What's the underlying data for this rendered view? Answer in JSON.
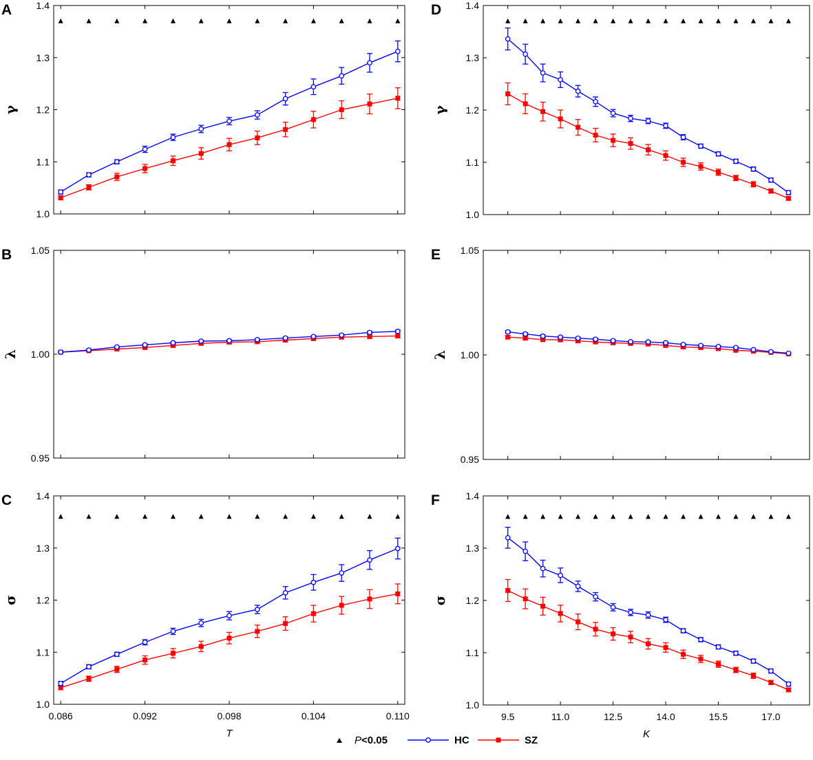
{
  "legend": {
    "sig_p": "P",
    "sig_rest": "<0.05",
    "hc": "HC",
    "sz": "SZ"
  },
  "colors": {
    "hc": "#0000ff",
    "sz": "#ff0000",
    "sig": "#000000"
  },
  "chart_data": [
    {
      "id": "A",
      "panel_label": "A",
      "type": "line",
      "ylabel": "γ",
      "xlabel": "",
      "ylim": [
        1.0,
        1.4
      ],
      "yticks": [
        1.0,
        1.1,
        1.2,
        1.3,
        1.4
      ],
      "ytick_labels": [
        "1.0",
        "1.1",
        "1.2",
        "1.3",
        "1.4"
      ],
      "xlim": [
        0.0855,
        0.1105
      ],
      "xticks": [
        0.086,
        0.092,
        0.098,
        0.104,
        0.11
      ],
      "xtick_labels": [],
      "x": [
        0.086,
        0.088,
        0.09,
        0.092,
        0.094,
        0.096,
        0.098,
        0.1,
        0.102,
        0.104,
        0.106,
        0.108,
        0.11
      ],
      "series": [
        {
          "name": "HC",
          "values": [
            1.042,
            1.075,
            1.1,
            1.124,
            1.147,
            1.163,
            1.178,
            1.19,
            1.221,
            1.244,
            1.265,
            1.29,
            1.312
          ],
          "errors": [
            0.004,
            0.004,
            0.004,
            0.006,
            0.006,
            0.007,
            0.007,
            0.008,
            0.012,
            0.015,
            0.016,
            0.018,
            0.02
          ]
        },
        {
          "name": "SZ",
          "values": [
            1.031,
            1.051,
            1.071,
            1.087,
            1.102,
            1.116,
            1.133,
            1.146,
            1.162,
            1.181,
            1.2,
            1.211,
            1.222
          ],
          "errors": [
            0.004,
            0.005,
            0.007,
            0.008,
            0.009,
            0.011,
            0.012,
            0.013,
            0.014,
            0.016,
            0.017,
            0.019,
            0.02
          ]
        }
      ],
      "significance_y": 1.37,
      "significance_x": [
        0.086,
        0.088,
        0.09,
        0.092,
        0.094,
        0.096,
        0.098,
        0.1,
        0.102,
        0.104,
        0.106,
        0.108,
        0.11
      ]
    },
    {
      "id": "B",
      "panel_label": "B",
      "type": "line",
      "ylabel": "λ",
      "xlabel": "",
      "ylim": [
        0.95,
        1.05
      ],
      "yticks": [
        0.95,
        1.0,
        1.05
      ],
      "ytick_labels": [
        "0.95",
        "1.00",
        "1.05"
      ],
      "xlim": [
        0.0855,
        0.1105
      ],
      "xticks": [
        0.086,
        0.092,
        0.098,
        0.104,
        0.11
      ],
      "xtick_labels": [],
      "x": [
        0.086,
        0.088,
        0.09,
        0.092,
        0.094,
        0.096,
        0.098,
        0.1,
        0.102,
        0.104,
        0.106,
        0.108,
        0.11
      ],
      "series": [
        {
          "name": "HC",
          "values": [
            1.001,
            1.002,
            1.0035,
            1.0045,
            1.0055,
            1.0063,
            1.0065,
            1.007,
            1.0078,
            1.0085,
            1.0092,
            1.0105,
            1.011
          ],
          "errors": [
            0.0003,
            0.0003,
            0.0004,
            0.0004,
            0.0004,
            0.0004,
            0.0004,
            0.0004,
            0.0005,
            0.0005,
            0.0005,
            0.0006,
            0.0006
          ]
        },
        {
          "name": "SZ",
          "values": [
            1.001,
            1.0017,
            1.0025,
            1.0032,
            1.0042,
            1.0052,
            1.0058,
            1.006,
            1.0068,
            1.0075,
            1.0082,
            1.0085,
            1.0088
          ],
          "errors": [
            0.0003,
            0.0004,
            0.0005,
            0.0005,
            0.0006,
            0.0006,
            0.0006,
            0.0006,
            0.0007,
            0.0007,
            0.0008,
            0.0008,
            0.0008
          ]
        }
      ],
      "significance_y": null,
      "significance_x": []
    },
    {
      "id": "C",
      "panel_label": "C",
      "type": "line",
      "ylabel": "σ",
      "xlabel": "T",
      "ylim": [
        1.0,
        1.4
      ],
      "yticks": [
        1.0,
        1.1,
        1.2,
        1.3,
        1.4
      ],
      "ytick_labels": [
        "1.0",
        "1.1",
        "1.2",
        "1.3",
        "1.4"
      ],
      "xlim": [
        0.0855,
        0.1105
      ],
      "xticks": [
        0.086,
        0.092,
        0.098,
        0.104,
        0.11
      ],
      "xtick_labels": [
        "0.086",
        "0.092",
        "0.098",
        "0.104",
        "0.110"
      ],
      "x": [
        0.086,
        0.088,
        0.09,
        0.092,
        0.094,
        0.096,
        0.098,
        0.1,
        0.102,
        0.104,
        0.106,
        0.108,
        0.11
      ],
      "series": [
        {
          "name": "HC",
          "values": [
            1.04,
            1.072,
            1.096,
            1.119,
            1.14,
            1.156,
            1.17,
            1.182,
            1.214,
            1.234,
            1.252,
            1.277,
            1.299
          ],
          "errors": [
            0.004,
            0.004,
            0.004,
            0.005,
            0.006,
            0.007,
            0.008,
            0.008,
            0.012,
            0.015,
            0.016,
            0.018,
            0.02
          ]
        },
        {
          "name": "SZ",
          "values": [
            1.032,
            1.049,
            1.067,
            1.085,
            1.098,
            1.111,
            1.127,
            1.14,
            1.155,
            1.174,
            1.19,
            1.202,
            1.212
          ],
          "errors": [
            0.004,
            0.005,
            0.006,
            0.008,
            0.009,
            0.01,
            0.011,
            0.012,
            0.013,
            0.016,
            0.017,
            0.018,
            0.019
          ]
        }
      ],
      "significance_y": 1.36,
      "significance_x": [
        0.086,
        0.088,
        0.09,
        0.092,
        0.094,
        0.096,
        0.098,
        0.1,
        0.102,
        0.104,
        0.106,
        0.108,
        0.11
      ]
    },
    {
      "id": "D",
      "panel_label": "D",
      "type": "line",
      "ylabel": "γ",
      "xlabel": "",
      "ylim": [
        1.0,
        1.4
      ],
      "yticks": [
        1.0,
        1.1,
        1.2,
        1.3,
        1.4
      ],
      "ytick_labels": [
        "1.0",
        "1.1",
        "1.2",
        "1.3",
        "1.4"
      ],
      "xlim": [
        8.8,
        18.1
      ],
      "xticks": [
        9.5,
        11.0,
        12.5,
        14.0,
        15.5,
        17.0
      ],
      "xtick_labels": [],
      "x": [
        9.5,
        10.0,
        10.5,
        11.0,
        11.5,
        12.0,
        12.5,
        13.0,
        13.5,
        14.0,
        14.5,
        15.0,
        15.5,
        16.0,
        16.5,
        17.0,
        17.5
      ],
      "series": [
        {
          "name": "HC",
          "values": [
            1.336,
            1.307,
            1.271,
            1.258,
            1.236,
            1.216,
            1.194,
            1.184,
            1.179,
            1.17,
            1.148,
            1.131,
            1.116,
            1.102,
            1.087,
            1.066,
            1.042
          ],
          "errors": [
            0.021,
            0.019,
            0.017,
            0.015,
            0.011,
            0.009,
            0.007,
            0.006,
            0.005,
            0.005,
            0.005,
            0.004,
            0.004,
            0.004,
            0.004,
            0.004,
            0.004
          ]
        },
        {
          "name": "SZ",
          "values": [
            1.231,
            1.212,
            1.197,
            1.183,
            1.167,
            1.152,
            1.142,
            1.136,
            1.124,
            1.113,
            1.1,
            1.092,
            1.081,
            1.07,
            1.058,
            1.045,
            1.031
          ],
          "errors": [
            0.021,
            0.019,
            0.018,
            0.017,
            0.015,
            0.013,
            0.012,
            0.011,
            0.01,
            0.009,
            0.008,
            0.007,
            0.006,
            0.005,
            0.005,
            0.004,
            0.003
          ]
        }
      ],
      "significance_y": 1.37,
      "significance_x": [
        9.5,
        10.0,
        10.5,
        11.0,
        11.5,
        12.0,
        12.5,
        13.0,
        13.5,
        14.0,
        14.5,
        15.0,
        15.5,
        16.0,
        16.5,
        17.0,
        17.5
      ]
    },
    {
      "id": "E",
      "panel_label": "E",
      "type": "line",
      "ylabel": "λ",
      "xlabel": "",
      "ylim": [
        0.95,
        1.05
      ],
      "yticks": [
        0.95,
        1.0,
        1.05
      ],
      "ytick_labels": [
        "0.95",
        "1.00",
        "1.05"
      ],
      "xlim": [
        8.8,
        18.1
      ],
      "xticks": [
        9.5,
        11.0,
        12.5,
        14.0,
        15.5,
        17.0
      ],
      "xtick_labels": [],
      "x": [
        9.5,
        10.0,
        10.5,
        11.0,
        11.5,
        12.0,
        12.5,
        13.0,
        13.5,
        14.0,
        14.5,
        15.0,
        15.5,
        16.0,
        16.5,
        17.0,
        17.5
      ],
      "series": [
        {
          "name": "HC",
          "values": [
            1.011,
            1.01,
            1.009,
            1.0085,
            1.008,
            1.0075,
            1.0068,
            1.0063,
            1.0062,
            1.0058,
            1.005,
            1.0045,
            1.004,
            1.0035,
            1.0025,
            1.0015,
            1.0008
          ],
          "errors": [
            0.0006,
            0.0006,
            0.0006,
            0.0005,
            0.0005,
            0.0005,
            0.0005,
            0.0004,
            0.0004,
            0.0004,
            0.0004,
            0.0004,
            0.0004,
            0.0003,
            0.0003,
            0.0003,
            0.0003
          ]
        },
        {
          "name": "SZ",
          "values": [
            1.0085,
            1.008,
            1.0073,
            1.0072,
            1.0067,
            1.0062,
            1.0058,
            1.0055,
            1.0052,
            1.0045,
            1.0038,
            1.0035,
            1.003,
            1.0022,
            1.0018,
            1.0012,
            1.0005
          ],
          "errors": [
            0.0008,
            0.0007,
            0.0007,
            0.0007,
            0.0007,
            0.0006,
            0.0006,
            0.0006,
            0.0006,
            0.0005,
            0.0005,
            0.0005,
            0.0004,
            0.0004,
            0.0004,
            0.0003,
            0.0003
          ]
        }
      ],
      "significance_y": null,
      "significance_x": []
    },
    {
      "id": "F",
      "panel_label": "F",
      "type": "line",
      "ylabel": "σ",
      "xlabel": "K",
      "ylim": [
        1.0,
        1.4
      ],
      "yticks": [
        1.0,
        1.1,
        1.2,
        1.3,
        1.4
      ],
      "ytick_labels": [
        "1.0",
        "1.1",
        "1.2",
        "1.3",
        "1.4"
      ],
      "xlim": [
        8.8,
        18.1
      ],
      "xticks": [
        9.5,
        11.0,
        12.5,
        14.0,
        15.5,
        17.0
      ],
      "xtick_labels": [
        "9.5",
        "11.0",
        "12.5",
        "14.0",
        "15.5",
        "17.0"
      ],
      "x": [
        9.5,
        10.0,
        10.5,
        11.0,
        11.5,
        12.0,
        12.5,
        13.0,
        13.5,
        14.0,
        14.5,
        15.0,
        15.5,
        16.0,
        16.5,
        17.0,
        17.5
      ],
      "series": [
        {
          "name": "HC",
          "values": [
            1.32,
            1.294,
            1.261,
            1.248,
            1.227,
            1.207,
            1.187,
            1.177,
            1.172,
            1.163,
            1.142,
            1.125,
            1.111,
            1.099,
            1.084,
            1.065,
            1.04
          ],
          "errors": [
            0.02,
            0.018,
            0.016,
            0.014,
            0.01,
            0.008,
            0.007,
            0.006,
            0.006,
            0.005,
            0.004,
            0.004,
            0.004,
            0.004,
            0.004,
            0.004,
            0.004
          ]
        },
        {
          "name": "SZ",
          "values": [
            1.219,
            1.203,
            1.189,
            1.175,
            1.159,
            1.145,
            1.136,
            1.13,
            1.117,
            1.11,
            1.097,
            1.088,
            1.078,
            1.067,
            1.056,
            1.043,
            1.029
          ],
          "errors": [
            0.021,
            0.019,
            0.017,
            0.016,
            0.015,
            0.013,
            0.012,
            0.011,
            0.01,
            0.009,
            0.008,
            0.007,
            0.006,
            0.005,
            0.005,
            0.004,
            0.003
          ]
        }
      ],
      "significance_y": 1.36,
      "significance_x": [
        9.5,
        10.0,
        10.5,
        11.0,
        11.5,
        12.0,
        12.5,
        13.0,
        13.5,
        14.0,
        14.5,
        15.0,
        15.5,
        16.0,
        16.5,
        17.0,
        17.5
      ]
    }
  ]
}
